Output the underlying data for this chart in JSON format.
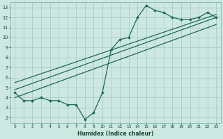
{
  "xlabel": "Humidex (Indice chaleur)",
  "bg_color": "#cce8e0",
  "grid_color": "#aacccc",
  "line_color": "#206858",
  "xlim": [
    -0.5,
    23.5
  ],
  "ylim": [
    1.5,
    13.5
  ],
  "xticks": [
    0,
    1,
    2,
    3,
    4,
    5,
    6,
    7,
    8,
    9,
    10,
    11,
    12,
    13,
    14,
    15,
    16,
    17,
    18,
    19,
    20,
    21,
    22,
    23
  ],
  "yticks": [
    2,
    3,
    4,
    5,
    6,
    7,
    8,
    9,
    10,
    11,
    12,
    13
  ],
  "data_x": [
    0,
    1,
    2,
    3,
    4,
    5,
    6,
    7,
    8,
    9,
    10,
    11,
    12,
    13,
    14,
    15,
    16,
    17,
    18,
    19,
    20,
    21,
    22,
    23
  ],
  "data_y": [
    4.5,
    3.7,
    3.7,
    4.0,
    3.7,
    3.7,
    3.3,
    3.3,
    1.85,
    2.5,
    4.5,
    8.8,
    9.8,
    10.0,
    12.0,
    13.2,
    12.7,
    12.5,
    12.0,
    11.8,
    11.8,
    12.0,
    12.5,
    12.0
  ],
  "reg_lines": [
    {
      "x0": 0,
      "y0": 4.8,
      "x1": 23,
      "y1": 12.0
    },
    {
      "x0": 0,
      "y0": 5.5,
      "x1": 23,
      "y1": 12.3
    },
    {
      "x0": 0,
      "y0": 4.0,
      "x1": 23,
      "y1": 11.3
    }
  ]
}
